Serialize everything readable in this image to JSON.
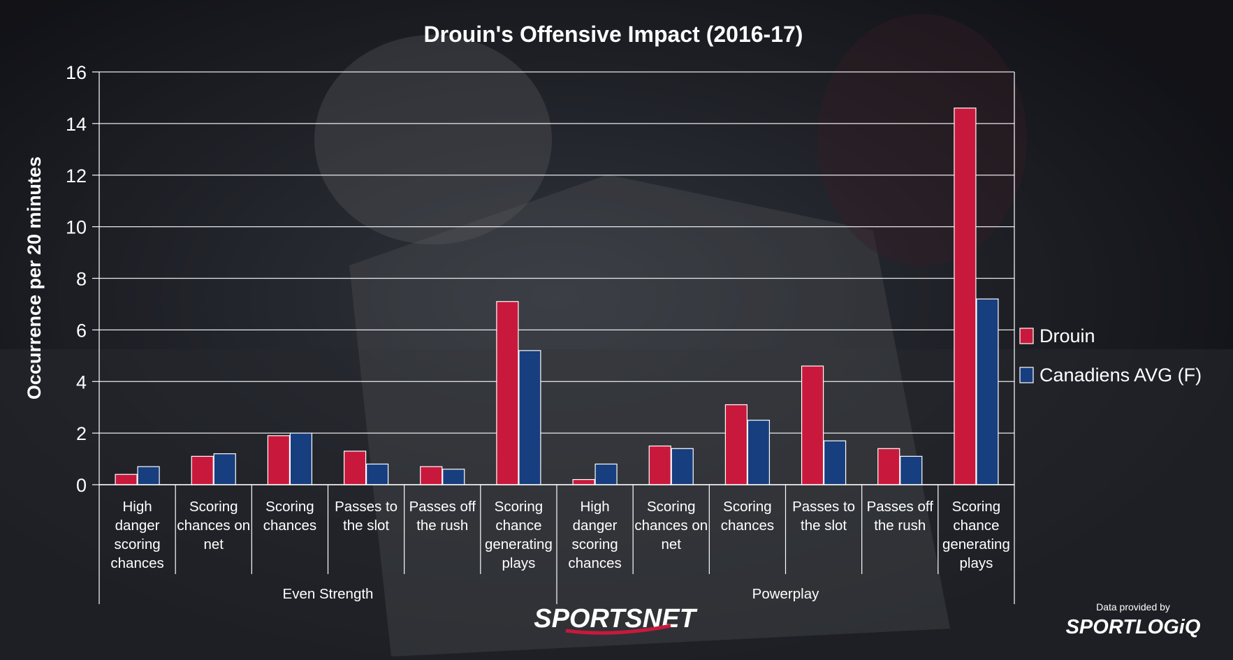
{
  "chart_data": {
    "type": "bar",
    "title": "Drouin's Offensive Impact (2016-17)",
    "ylabel": "Occurrence per 20 minutes",
    "ylim": [
      0,
      16
    ],
    "yticks": [
      0,
      2,
      4,
      6,
      8,
      10,
      12,
      14,
      16
    ],
    "grid": true,
    "legend_position": "right",
    "categories": [
      "High danger scoring chances",
      "Scoring chances on net",
      "Scoring chances",
      "Passes to the slot",
      "Passes off the rush",
      "Scoring chance generating plays",
      "High danger scoring chances",
      "Scoring chances on net",
      "Scoring chances",
      "Passes to the slot",
      "Passes off the rush",
      "Scoring chance generating plays"
    ],
    "category_lines": [
      [
        "High",
        "danger",
        "scoring",
        "chances"
      ],
      [
        "Scoring",
        "chances on",
        "net"
      ],
      [
        "Scoring",
        "chances"
      ],
      [
        "Passes to",
        "the slot"
      ],
      [
        "Passes off",
        "the rush"
      ],
      [
        "Scoring",
        "chance",
        "generating",
        "plays"
      ],
      [
        "High",
        "danger",
        "scoring",
        "chances"
      ],
      [
        "Scoring",
        "chances on",
        "net"
      ],
      [
        "Scoring",
        "chances"
      ],
      [
        "Passes to",
        "the slot"
      ],
      [
        "Passes off",
        "the rush"
      ],
      [
        "Scoring",
        "chance",
        "generating",
        "plays"
      ]
    ],
    "groups": [
      {
        "label": "Even Strength",
        "count": 6
      },
      {
        "label": "Powerplay",
        "count": 6
      }
    ],
    "series": [
      {
        "name": "Drouin",
        "color": "#c8193c",
        "values": [
          0.4,
          1.1,
          1.9,
          1.3,
          0.7,
          7.1,
          0.2,
          1.5,
          3.1,
          4.6,
          1.4,
          14.6
        ]
      },
      {
        "name": "Canadiens AVG (F)",
        "color": "#173e7e",
        "values": [
          0.7,
          1.2,
          2.0,
          0.8,
          0.6,
          5.2,
          0.8,
          1.4,
          2.5,
          1.7,
          1.1,
          7.2
        ]
      }
    ]
  },
  "branding": {
    "broadcaster": "SPORTSNET",
    "credit_line": "Data provided by",
    "provider": "SPORTLOGiQ"
  }
}
